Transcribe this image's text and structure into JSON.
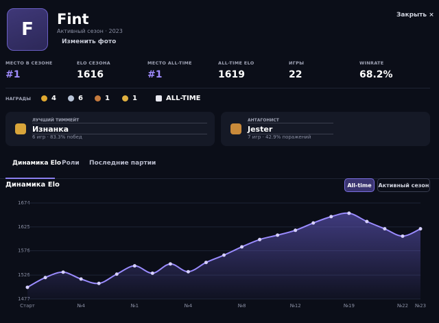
{
  "header": {
    "avatar_letter": "F",
    "name": "Fint",
    "season": "Активный сезон · 2023",
    "change_photo": "Изменить фото",
    "close": "Закрыть ×"
  },
  "stats": [
    {
      "label": "МЕСТО В СЕЗОНЕ",
      "value": "#1"
    },
    {
      "label": "ELO СЕЗОНА",
      "value": "1616"
    },
    {
      "label": "МЕСТО ALL-TIME",
      "value": "#1"
    },
    {
      "label": "ALL-TIME ELO",
      "value": "1619"
    },
    {
      "label": "ИГРЫ",
      "value": "22"
    },
    {
      "label": "WINRATE",
      "value": "68.2%"
    }
  ],
  "awards": {
    "label": "НАГРАДЫ",
    "items": [
      "4",
      "6",
      "1",
      "1"
    ],
    "all_time": "ALL-TIME"
  },
  "cards": [
    {
      "label": "ЛУЧШИЙ ТИММЕЙТ",
      "name": "Изнанка",
      "meta": "6 игр · 83.3% побед"
    },
    {
      "label": "АНТАГОНИСТ",
      "name": "Jester",
      "meta": "7 игр · 42.9% поражений"
    }
  ],
  "tabs": [
    "Динамика Elo",
    "Роли",
    "Последние партии"
  ],
  "chart_data": {
    "type": "line",
    "title": "Динамика Elo",
    "buttons": [
      "All-time",
      "Активный сезон"
    ],
    "categories": [
      "Старт",
      null,
      null,
      "№4",
      null,
      null,
      "№1",
      null,
      null,
      "№4",
      null,
      null,
      "№8",
      null,
      null,
      "№12",
      null,
      null,
      "№19",
      null,
      null,
      "№22",
      "№23"
    ],
    "values": [
      1501,
      1521,
      1532,
      1518,
      1509,
      1528,
      1545,
      1530,
      1549,
      1533,
      1552,
      1567,
      1584,
      1599,
      1608,
      1618,
      1633,
      1646,
      1653,
      1636,
      1621,
      1606,
      1621
    ],
    "color": "#9b8cff",
    "ylim": [
      1477,
      1674
    ],
    "yticks": [
      1477,
      1526,
      1576,
      1625,
      1674
    ],
    "grid": true
  }
}
